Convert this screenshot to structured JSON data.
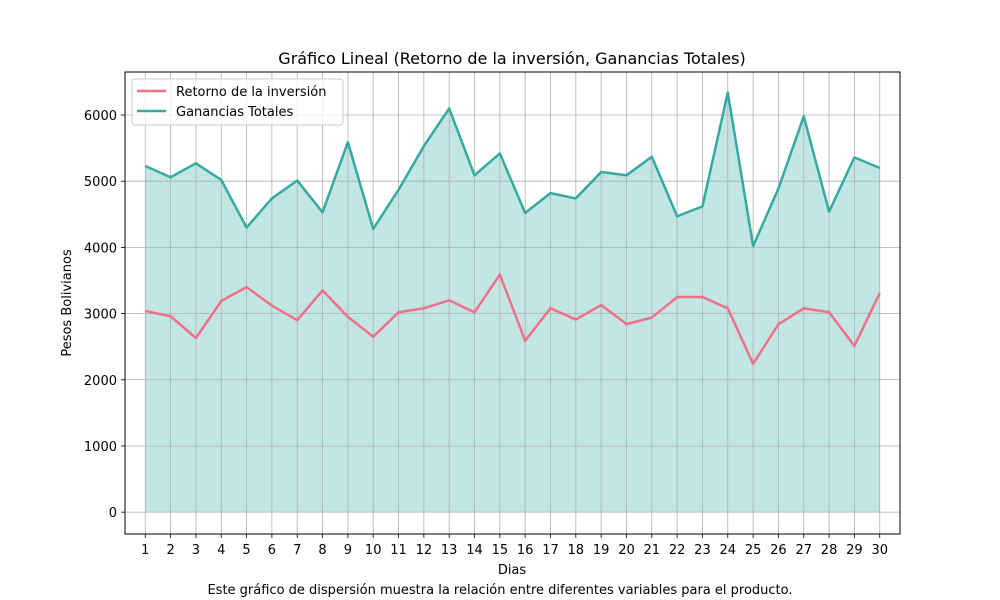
{
  "chart_data": {
    "type": "area",
    "title": "Gráfico Lineal (Retorno de la inversión, Ganancias Totales)",
    "xlabel": "Dias",
    "ylabel": "Pesos Bolivianos",
    "x": [
      1,
      2,
      3,
      4,
      5,
      6,
      7,
      8,
      9,
      10,
      11,
      12,
      13,
      14,
      15,
      16,
      17,
      18,
      19,
      20,
      21,
      22,
      23,
      24,
      25,
      26,
      27,
      28,
      29,
      30
    ],
    "xticks": [
      "1",
      "2",
      "3",
      "4",
      "5",
      "6",
      "7",
      "8",
      "9",
      "10",
      "11",
      "12",
      "13",
      "14",
      "15",
      "16",
      "17",
      "18",
      "19",
      "20",
      "21",
      "22",
      "23",
      "24",
      "25",
      "26",
      "27",
      "28",
      "29",
      "30"
    ],
    "yticks": [
      "0",
      "1000",
      "2000",
      "3000",
      "4000",
      "5000",
      "6000"
    ],
    "ylim": [
      -330,
      6650
    ],
    "xlim": [
      0.2,
      30.8
    ],
    "grid": true,
    "legend_position": "upper-left",
    "series": [
      {
        "name": "Retorno de la inversión",
        "color": "#f0708a",
        "fill": "#c0c4c6",
        "values": [
          3040,
          2960,
          2630,
          3190,
          3400,
          3120,
          2900,
          3350,
          2950,
          2650,
          3020,
          3080,
          3200,
          3020,
          3590,
          2590,
          3080,
          2910,
          3130,
          2840,
          2940,
          3250,
          3250,
          3080,
          2240,
          2840,
          3080,
          3020,
          2510,
          3310
        ]
      },
      {
        "name": "Ganancias Totales",
        "color": "#35aaa0",
        "fill": "#c2e6e4",
        "values": [
          5230,
          5060,
          5270,
          5020,
          4300,
          4740,
          5010,
          4530,
          5590,
          4280,
          4870,
          5530,
          6100,
          5090,
          5420,
          4520,
          4820,
          4740,
          5140,
          5090,
          5370,
          4470,
          4620,
          6340,
          4020,
          4890,
          5980,
          4540,
          5360,
          5200
        ]
      }
    ]
  },
  "caption": "Este gráfico de dispersión muestra la relación entre diferentes variables para el producto."
}
